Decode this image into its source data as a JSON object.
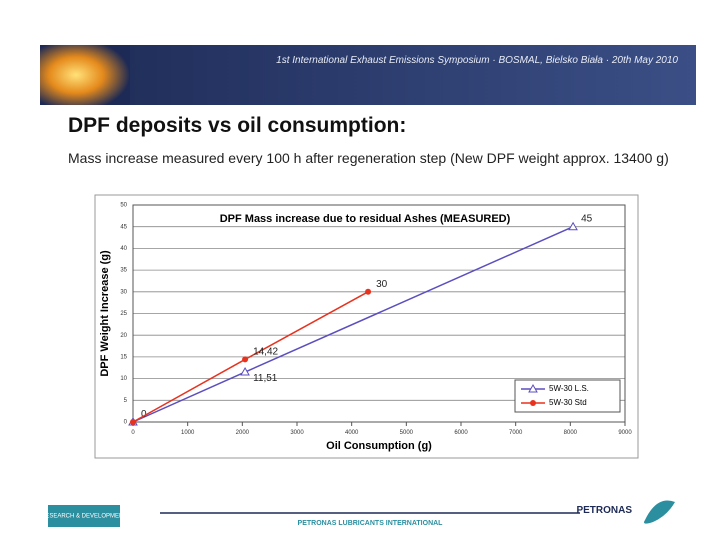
{
  "header": {
    "text": "1st International Exhaust Emissions Symposium · BOSMAL, Bielsko Biała · 20th May 2010"
  },
  "title": "DPF deposits vs oil consumption:",
  "subtitle": "Mass increase measured every 100 h after regeneration step (New DPF weight approx. 13400 g)",
  "footer": {
    "left_logo": "RESEARCH & DEVELOPMENT",
    "center": "PETRONAS LUBRICANTS INTERNATIONAL",
    "right_logo": "PETRONAS"
  },
  "chart_data": {
    "type": "line",
    "title": "DPF Mass increase due to residual Ashes (MEASURED)",
    "x_label": "Oil Consumption (g)",
    "y_label": "DPF Weight Increase (g)",
    "xlim": [
      0,
      9000
    ],
    "xticks": [
      0,
      1000,
      2000,
      3000,
      4000,
      5000,
      6000,
      7000,
      8000,
      9000
    ],
    "ylim": [
      0,
      50
    ],
    "yticks": [
      0,
      5,
      10,
      15,
      20,
      25,
      30,
      35,
      40,
      45,
      50
    ],
    "grid": true,
    "legend": "bottom-right",
    "series": [
      {
        "name": "5W-30 L.S.",
        "color": "#5b4fc0",
        "marker": "triangle",
        "x": [
          0,
          2050,
          8050
        ],
        "values": [
          0,
          11.51,
          45
        ],
        "value_labels": [
          "0",
          "11,51",
          "45"
        ]
      },
      {
        "name": "5W-30 Std",
        "color": "#e8321e",
        "marker": "circle",
        "x": [
          0,
          2050,
          4300
        ],
        "values": [
          0,
          14.42,
          30
        ],
        "value_labels": [
          null,
          "14,42",
          "30"
        ]
      }
    ]
  }
}
